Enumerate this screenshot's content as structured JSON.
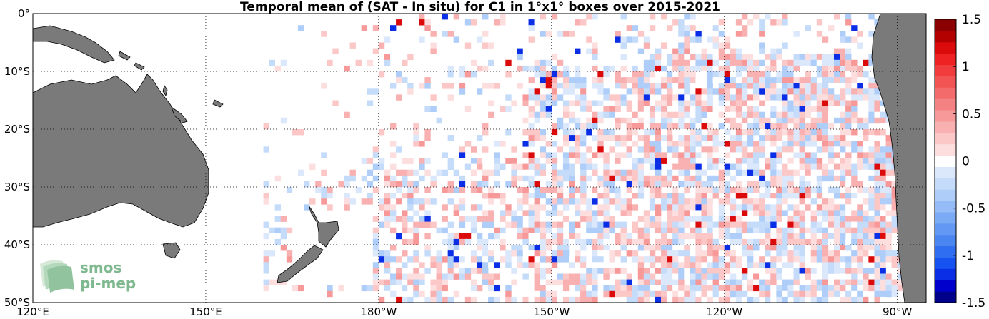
{
  "title": "Temporal mean of (SAT - In situ) for C1 in 1°x1° boxes over 2015-2021",
  "map": {
    "lon_range": [
      120,
      275
    ],
    "lat_range": [
      -50,
      0
    ],
    "lon_ticks": [
      {
        "value": 120,
        "label": "120°E"
      },
      {
        "value": 150,
        "label": "150°E"
      },
      {
        "value": 180,
        "label": "180°W"
      },
      {
        "value": 210,
        "label": "150°W"
      },
      {
        "value": 240,
        "label": "120°W"
      },
      {
        "value": 270,
        "label": "90°W"
      }
    ],
    "lat_ticks": [
      {
        "value": 0,
        "label": "0°"
      },
      {
        "value": -10,
        "label": "10°S"
      },
      {
        "value": -20,
        "label": "20°S"
      },
      {
        "value": -30,
        "label": "30°S"
      },
      {
        "value": -40,
        "label": "40°S"
      },
      {
        "value": -50,
        "label": "50°S"
      }
    ],
    "grid": "dotted",
    "land_color": "#7a7a7a",
    "seed": 20152021
  },
  "colorbar": {
    "min": -1.5,
    "max": 1.5,
    "ticks": [
      {
        "value": 1.5,
        "label": "1.5"
      },
      {
        "value": 1,
        "label": "1"
      },
      {
        "value": 0.5,
        "label": "0.5"
      },
      {
        "value": 0,
        "label": "0"
      },
      {
        "value": -0.5,
        "label": "-0.5"
      },
      {
        "value": -1,
        "label": "-1"
      },
      {
        "value": -1.5,
        "label": "-1.5"
      }
    ],
    "colors": [
      "#00008b",
      "#0000cd",
      "#0a2ee6",
      "#1652f0",
      "#2f6ef0",
      "#4a86f2",
      "#6399f4",
      "#7cabf6",
      "#95bcf7",
      "#aecdf9",
      "#c4dbfa",
      "#dbe8fc",
      "#ffffff",
      "#fddede",
      "#fbc7c7",
      "#f9b0b0",
      "#f79999",
      "#f58282",
      "#f46b6b",
      "#f25454",
      "#f03c3c",
      "#ee2222",
      "#dc0b0b",
      "#b30000",
      "#8b0000"
    ]
  },
  "logo": {
    "line1": "smos",
    "line2": "pi-mep"
  }
}
